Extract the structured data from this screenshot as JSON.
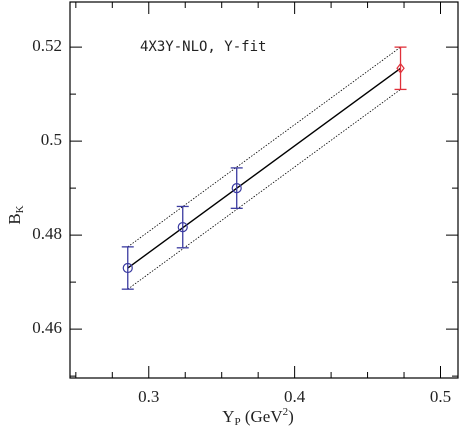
{
  "chart_data": {
    "type": "errorbar",
    "annotation": "4X3Y-NLO, Y-fit",
    "x_label": [
      "Y",
      "P",
      " (GeV",
      "2",
      ")"
    ],
    "y_label": [
      "B",
      "K"
    ],
    "xlim": [
      0.246,
      0.512
    ],
    "ylim": [
      0.4496,
      0.5296
    ],
    "xticks": [
      0.3,
      0.4,
      0.5
    ],
    "yticks": [
      0.46,
      0.48,
      0.5,
      0.52
    ],
    "xminor": [
      0.25,
      0.275,
      0.325,
      0.35,
      0.375,
      0.425,
      0.45,
      0.475
    ],
    "yminor": [
      0.45,
      0.47,
      0.49,
      0.51
    ],
    "series": [
      {
        "color": "#3a3aa0",
        "marker": "circle",
        "x": [
          0.2856,
          0.3233,
          0.3603
        ],
        "values": [
          0.473,
          0.4817,
          0.49
        ],
        "errors": [
          0.0045,
          0.0044,
          0.0043
        ]
      },
      {
        "color": "#e0303a",
        "marker": "diamond",
        "x": [
          0.4726
        ],
        "values": [
          0.5155
        ],
        "errors": [
          0.0045
        ]
      }
    ],
    "fit": {
      "color": "#000000",
      "x": [
        0.2856,
        0.4726
      ],
      "values": [
        0.473,
        0.5155
      ],
      "lower": [
        0.4685,
        0.511
      ],
      "upper": [
        0.4775,
        0.52
      ]
    }
  }
}
